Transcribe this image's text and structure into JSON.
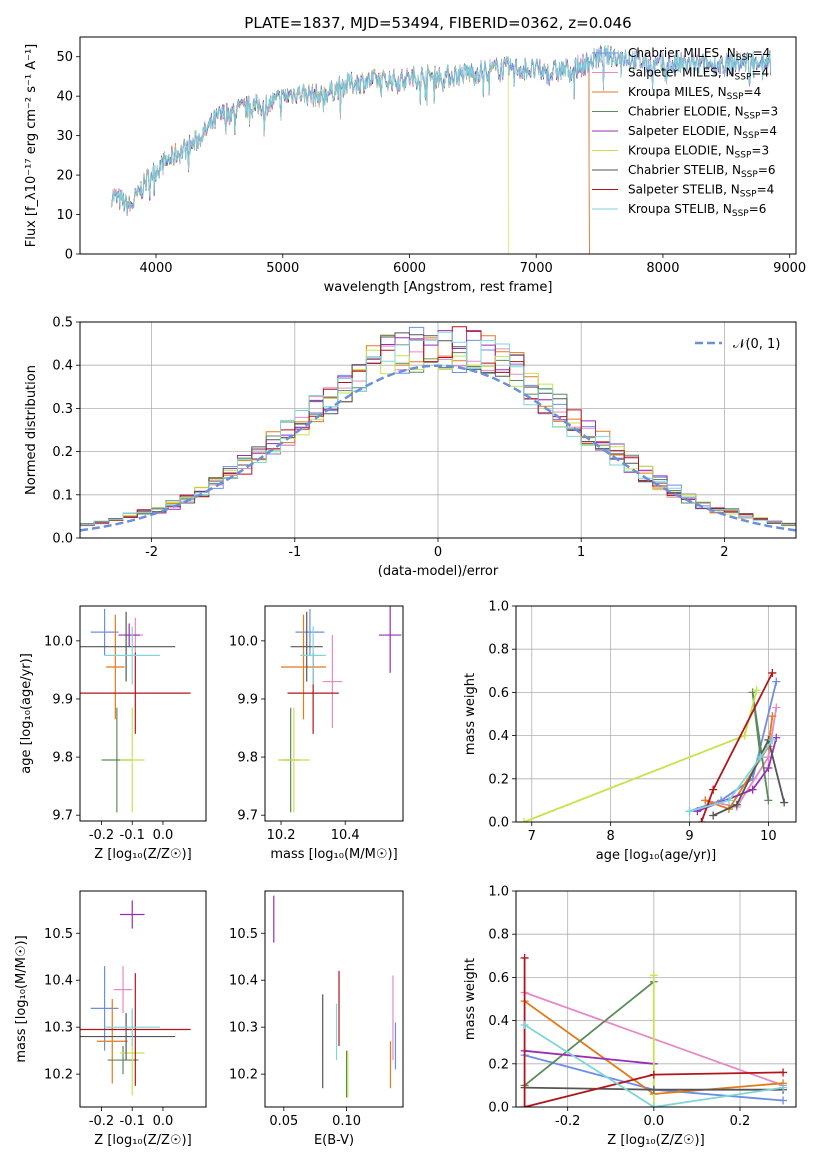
{
  "colors": {
    "Chabrier MILES": "#6e8ee6",
    "Salpeter MILES": "#e78ac3",
    "Kroupa MILES": "#e07b1c",
    "Chabrier ELODIE": "#5d8a5b",
    "Salpeter ELODIE": "#9a2db6",
    "Kroupa ELODIE": "#c6e34e",
    "Chabrier STELIB": "#555555",
    "Salpeter STELIB": "#b3141c",
    "Kroupa STELIB": "#7fd6d8"
  },
  "chart_data": [
    {
      "type": "line",
      "title": "PLATE=1837, MJD=53494, FIBERID=0362, z=0.046",
      "xlabel": "wavelength [Angstrom, rest frame]",
      "ylabel": "Flux [f_λ10⁻¹⁷ erg cm⁻² s⁻¹ A⁻¹]",
      "xlim": [
        3400,
        9050
      ],
      "ylim": [
        0,
        55
      ],
      "xticks": [
        4000,
        5000,
        6000,
        7000,
        8000,
        9000
      ],
      "yticks": [
        0,
        10,
        20,
        30,
        40,
        50
      ],
      "legend_position": "top-right",
      "legend": [
        {
          "label": "Chabrier MILES, N",
          "sub": "SSP",
          "tail": "=4"
        },
        {
          "label": "Salpeter MILES, N",
          "sub": "SSP",
          "tail": "=4"
        },
        {
          "label": "Kroupa MILES, N",
          "sub": "SSP",
          "tail": "=4"
        },
        {
          "label": "Chabrier ELODIE, N",
          "sub": "SSP",
          "tail": "=3"
        },
        {
          "label": "Salpeter ELODIE, N",
          "sub": "SSP",
          "tail": "=4"
        },
        {
          "label": "Kroupa ELODIE, N",
          "sub": "SSP",
          "tail": "=3"
        },
        {
          "label": "Chabrier STELIB, N",
          "sub": "SSP",
          "tail": "=6"
        },
        {
          "label": "Salpeter STELIB, N",
          "sub": "SSP",
          "tail": "=4"
        },
        {
          "label": "Kroupa STELIB, N",
          "sub": "SSP",
          "tail": "=6"
        }
      ],
      "spectrum_anchors": {
        "wavelength": [
          3650,
          3800,
          3950,
          4100,
          4300,
          4500,
          4700,
          4900,
          5100,
          5300,
          5500,
          5700,
          5900,
          6100,
          6300,
          6500,
          6700,
          6900,
          7100,
          7300,
          7500,
          7700,
          7900,
          8100,
          8300,
          8500,
          8700,
          8850
        ],
        "flux": [
          15,
          12,
          20,
          24,
          28,
          35,
          37,
          38,
          41,
          40,
          43,
          44,
          44,
          45,
          45,
          46,
          47,
          47,
          46,
          47,
          50,
          50,
          48,
          48,
          48,
          48,
          49,
          49
        ]
      },
      "series_end": [
        {
          "name": "Kroupa ELODIE",
          "end": 6780
        },
        {
          "name": "Salpeter STELIB",
          "end": 7420
        },
        {
          "name": "Kroupa MILES",
          "end": 7420
        }
      ]
    },
    {
      "type": "histogram",
      "xlabel": "(data-model)/error",
      "ylabel": "Normed distribution",
      "xlim": [
        -2.5,
        2.5
      ],
      "ylim": [
        0,
        0.5
      ],
      "xticks": [
        -2,
        -1,
        0,
        1,
        2
      ],
      "yticks": [
        0.0,
        0.1,
        0.2,
        0.3,
        0.4,
        0.5
      ],
      "grid": true,
      "legend_position": "top-right",
      "reference_curve": "𝒩(0, 1)",
      "bin_width": 0.1
    },
    {
      "type": "errorbar",
      "xlabel": "Z [log₁₀(Z/Z☉)]",
      "ylabel": "age  [log₁₀(age/yr)]",
      "xlim": [
        -0.27,
        0.14
      ],
      "ylim": [
        9.69,
        10.06
      ],
      "xticks": [
        -0.2,
        -0.1,
        0.0
      ],
      "yticks": [
        9.7,
        9.8,
        9.9,
        10.0
      ],
      "points": [
        {
          "name": "Chabrier MILES",
          "x": -0.19,
          "xe": 0.045,
          "y": 10.015,
          "ye": 0.04
        },
        {
          "name": "Salpeter MILES",
          "x": -0.09,
          "xe": 0.025,
          "y": 10.01,
          "ye": 0.03
        },
        {
          "name": "Kroupa MILES",
          "x": -0.155,
          "xe": 0.03,
          "y": 9.955,
          "ye": 0.09
        },
        {
          "name": "Chabrier ELODIE",
          "x": -0.15,
          "xe": 0.05,
          "y": 9.795,
          "ye": 0.09
        },
        {
          "name": "Salpeter ELODIE",
          "x": -0.11,
          "xe": 0.035,
          "y": 10.01,
          "ye": 0.02
        },
        {
          "name": "Kroupa ELODIE",
          "x": -0.1,
          "xe": 0.04,
          "y": 9.795,
          "ye": 0.09
        },
        {
          "name": "Chabrier STELIB",
          "x": -0.12,
          "xe": 0.16,
          "y": 9.99,
          "ye": 0.06
        },
        {
          "name": "Salpeter STELIB",
          "x": -0.09,
          "xe": 0.18,
          "y": 9.91,
          "ye": 0.07
        },
        {
          "name": "Kroupa STELIB",
          "x": -0.1,
          "xe": 0.09,
          "y": 9.975,
          "ye": 0.05
        }
      ]
    },
    {
      "type": "errorbar",
      "xlabel": "mass [log₁₀(M/M☉)]",
      "xlim": [
        10.15,
        10.58
      ],
      "ylim": [
        9.69,
        10.06
      ],
      "xticks": [
        10.2,
        10.4
      ],
      "yticks": [
        9.7,
        9.8,
        9.9,
        10.0
      ],
      "points": [
        {
          "name": "Chabrier MILES",
          "x": 10.29,
          "xe": 0.045,
          "y": 10.015,
          "ye": 0.04
        },
        {
          "name": "Salpeter MILES",
          "x": 10.36,
          "xe": 0.03,
          "y": 9.93,
          "ye": 0.08
        },
        {
          "name": "Kroupa MILES",
          "x": 10.27,
          "xe": 0.07,
          "y": 9.955,
          "ye": 0.09
        },
        {
          "name": "Chabrier ELODIE",
          "x": 10.23,
          "xe": 0.03,
          "y": 9.795,
          "ye": 0.09
        },
        {
          "name": "Salpeter ELODIE",
          "x": 10.54,
          "xe": 0.035,
          "y": 10.01,
          "ye": 0.065
        },
        {
          "name": "Kroupa ELODIE",
          "x": 10.24,
          "xe": 0.05,
          "y": 9.795,
          "ye": 0.09
        },
        {
          "name": "Chabrier STELIB",
          "x": 10.28,
          "xe": 0.05,
          "y": 9.99,
          "ye": 0.06
        },
        {
          "name": "Salpeter STELIB",
          "x": 10.3,
          "xe": 0.08,
          "y": 9.91,
          "ye": 0.07
        },
        {
          "name": "Kroupa STELIB",
          "x": 10.3,
          "xe": 0.04,
          "y": 9.975,
          "ye": 0.05
        }
      ]
    },
    {
      "type": "line",
      "xlabel": "age  [log₁₀(age/yr)]",
      "ylabel": "mass weight",
      "xlim": [
        6.8,
        10.35
      ],
      "ylim": [
        0,
        1.0
      ],
      "xticks": [
        7,
        8,
        9,
        10
      ],
      "yticks": [
        0.0,
        0.2,
        0.4,
        0.6,
        0.8,
        1.0
      ],
      "grid": true,
      "series": [
        {
          "name": "Chabrier MILES",
          "x": [
            9.0,
            9.4,
            9.8,
            10.1
          ],
          "y": [
            0.05,
            0.1,
            0.2,
            0.65
          ]
        },
        {
          "name": "Salpeter MILES",
          "x": [
            9.2,
            9.6,
            10.0,
            10.1
          ],
          "y": [
            0.1,
            0.07,
            0.3,
            0.53
          ]
        },
        {
          "name": "Kroupa MILES",
          "x": [
            9.2,
            9.5,
            10.0,
            10.05
          ],
          "y": [
            0.1,
            0.06,
            0.35,
            0.49
          ]
        },
        {
          "name": "Chabrier ELODIE",
          "x": [
            9.9,
            9.8,
            10.0
          ],
          "y": [
            0.3,
            0.6,
            0.1
          ]
        },
        {
          "name": "Salpeter ELODIE",
          "x": [
            9.1,
            9.8,
            10.0,
            10.1
          ],
          "y": [
            0.05,
            0.15,
            0.25,
            0.39
          ]
        },
        {
          "name": "Kroupa ELODIE",
          "x": [
            6.9,
            9.7,
            9.85
          ],
          "y": [
            0.0,
            0.4,
            0.61
          ]
        },
        {
          "name": "Chabrier STELIB",
          "x": [
            9.3,
            9.6,
            10.0,
            10.2
          ],
          "y": [
            0.03,
            0.08,
            0.38,
            0.09
          ]
        },
        {
          "name": "Salpeter STELIB",
          "x": [
            9.15,
            9.3,
            10.05
          ],
          "y": [
            0.0,
            0.15,
            0.69
          ]
        },
        {
          "name": "Kroupa STELIB",
          "x": [
            9.0,
            9.5,
            9.9,
            10.05
          ],
          "y": [
            0.05,
            0.1,
            0.3,
            0.38
          ]
        }
      ]
    },
    {
      "type": "errorbar",
      "xlabel": "Z [log₁₀(Z/Z☉)]",
      "ylabel": "mass [log₁₀(M/M☉)]",
      "xlim": [
        -0.27,
        0.14
      ],
      "ylim": [
        10.13,
        10.59
      ],
      "xticks": [
        -0.2,
        -0.1,
        0.0
      ],
      "yticks": [
        10.2,
        10.3,
        10.4,
        10.5
      ],
      "points": [
        {
          "name": "Chabrier MILES",
          "x": -0.19,
          "xe": 0.045,
          "y": 10.34,
          "ye": 0.09
        },
        {
          "name": "Salpeter MILES",
          "x": -0.13,
          "xe": 0.03,
          "y": 10.38,
          "ye": 0.05
        },
        {
          "name": "Kroupa MILES",
          "x": -0.165,
          "xe": 0.05,
          "y": 10.27,
          "ye": 0.09
        },
        {
          "name": "Chabrier ELODIE",
          "x": -0.13,
          "xe": 0.05,
          "y": 10.23,
          "ye": 0.03
        },
        {
          "name": "Salpeter ELODIE",
          "x": -0.1,
          "xe": 0.04,
          "y": 10.54,
          "ye": 0.03
        },
        {
          "name": "Kroupa ELODIE",
          "x": -0.1,
          "xe": 0.04,
          "y": 10.245,
          "ye": 0.09
        },
        {
          "name": "Chabrier STELIB",
          "x": -0.12,
          "xe": 0.16,
          "y": 10.28,
          "ye": 0.05
        },
        {
          "name": "Salpeter STELIB",
          "x": -0.09,
          "xe": 0.18,
          "y": 10.295,
          "ye": 0.12
        },
        {
          "name": "Kroupa STELIB",
          "x": -0.1,
          "xe": 0.09,
          "y": 10.3,
          "ye": 0.04
        }
      ]
    },
    {
      "type": "errorbar",
      "xlabel": "E(B-V)",
      "xlim": [
        0.035,
        0.145
      ],
      "ylim": [
        10.13,
        10.59
      ],
      "xticks": [
        0.05,
        0.1
      ],
      "yticks": [
        10.2,
        10.3,
        10.4,
        10.5
      ],
      "points": [
        {
          "name": "Chabrier MILES",
          "x": 0.139,
          "xe": 0,
          "y": 10.26,
          "ye": 0.05
        },
        {
          "name": "Salpeter MILES",
          "x": 0.137,
          "xe": 0,
          "y": 10.32,
          "ye": 0.09
        },
        {
          "name": "Kroupa MILES",
          "x": 0.135,
          "xe": 0,
          "y": 10.22,
          "ye": 0.05
        },
        {
          "name": "Chabrier ELODIE",
          "x": 0.1,
          "xe": 0,
          "y": 10.2,
          "ye": 0.05
        },
        {
          "name": "Salpeter ELODIE",
          "x": 0.042,
          "xe": 0,
          "y": 10.53,
          "ye": 0.05
        },
        {
          "name": "Kroupa ELODIE",
          "x": 0.101,
          "xe": 0,
          "y": 10.2,
          "ye": 0.05
        },
        {
          "name": "Chabrier STELIB",
          "x": 0.081,
          "xe": 0,
          "y": 10.27,
          "ye": 0.1
        },
        {
          "name": "Salpeter STELIB",
          "x": 0.094,
          "xe": 0,
          "y": 10.34,
          "ye": 0.08
        },
        {
          "name": "Kroupa STELIB",
          "x": 0.092,
          "xe": 0,
          "y": 10.29,
          "ye": 0.06
        }
      ]
    },
    {
      "type": "line",
      "xlabel": "Z [log₁₀(Z/Z☉)]",
      "ylabel": "mass weight",
      "xlim": [
        -0.32,
        0.33
      ],
      "ylim": [
        0,
        1.0
      ],
      "xticks": [
        -0.2,
        0.0,
        0.2
      ],
      "yticks": [
        0.0,
        0.2,
        0.4,
        0.6,
        0.8,
        1.0
      ],
      "grid": true,
      "series": [
        {
          "name": "Chabrier MILES",
          "x": [
            -0.3,
            0.0,
            0.3
          ],
          "y": [
            0.24,
            0.08,
            0.03
          ]
        },
        {
          "name": "Salpeter MILES",
          "x": [
            -0.3,
            0.3
          ],
          "y": [
            0.53,
            0.1
          ]
        },
        {
          "name": "Kroupa MILES",
          "x": [
            -0.3,
            0.0,
            0.3
          ],
          "y": [
            0.49,
            0.06,
            0.11
          ]
        },
        {
          "name": "Chabrier ELODIE",
          "x": [
            -0.3,
            0.0
          ],
          "y": [
            0.1,
            0.58
          ]
        },
        {
          "name": "Salpeter ELODIE",
          "x": [
            -0.3,
            0.0
          ],
          "y": [
            0.26,
            0.2
          ]
        },
        {
          "name": "Kroupa ELODIE",
          "x": [
            0.0,
            0.0
          ],
          "y": [
            0.0,
            0.61
          ]
        },
        {
          "name": "Chabrier STELIB",
          "x": [
            -0.3,
            0.0,
            0.3
          ],
          "y": [
            0.09,
            0.08,
            0.08
          ]
        },
        {
          "name": "Salpeter STELIB",
          "x": [
            -0.3,
            -0.3,
            0.0,
            0.3
          ],
          "y": [
            0.69,
            0.0,
            0.15,
            0.16
          ]
        },
        {
          "name": "Kroupa STELIB",
          "x": [
            -0.3,
            0.0,
            0.3
          ],
          "y": [
            0.38,
            0.0,
            0.09
          ]
        }
      ]
    }
  ]
}
